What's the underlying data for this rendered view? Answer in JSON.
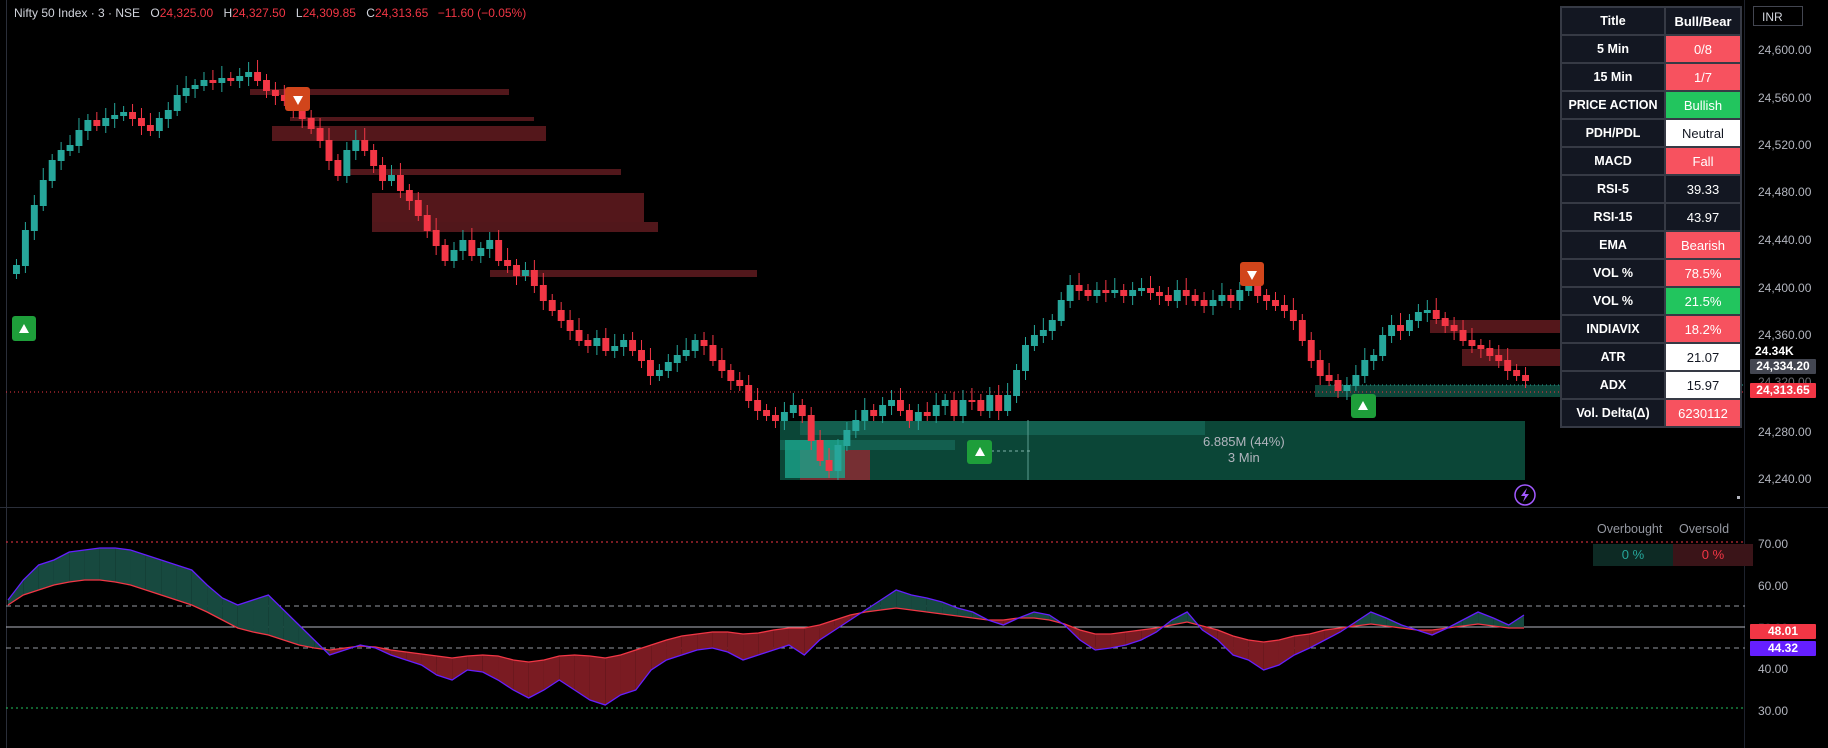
{
  "header": {
    "symbol": "Nifty 50 Index · 3 · NSE",
    "open_label": "O",
    "open": "24,325.00",
    "high_label": "H",
    "high": "24,327.50",
    "low_label": "L",
    "low": "24,309.85",
    "close_label": "C",
    "close": "24,313.65",
    "change": "−11.60 (−0.05%)"
  },
  "currency": "INR",
  "price_axis": {
    "ticks": [
      "24,600.00",
      "24,560.00",
      "24,520.00",
      "24,480.00",
      "24,440.00",
      "24,400.00",
      "24,360.00",
      "24,320.00",
      "24,280.00",
      "24,240.00"
    ],
    "marker_short": "24.34K",
    "marker_price": "24,334.20",
    "marker_last": "24,313.65"
  },
  "indicator_axis": {
    "ticks": [
      "70.00",
      "60.00",
      "50.00",
      "40.00",
      "30.00"
    ],
    "value_red": "48.01",
    "value_purple": "44.32"
  },
  "volume_label": {
    "value": "6.885M (44%)",
    "timeframe": "3 Min"
  },
  "overbought": {
    "label": "Overbought",
    "value": "0 %"
  },
  "oversold": {
    "label": "Oversold",
    "value": "0 %"
  },
  "table": {
    "header": {
      "left": "Title",
      "right": "Bull/Bear"
    },
    "rows": [
      {
        "label": "5 Min",
        "value": "0/8",
        "bg": "#f7525f",
        "fg": "#ffffff"
      },
      {
        "label": "15 Min",
        "value": "1/7",
        "bg": "#f7525f",
        "fg": "#ffffff"
      },
      {
        "label": "PRICE ACTION",
        "value": "Bullish",
        "bg": "#22c55e",
        "fg": "#ffffff"
      },
      {
        "label": "PDH/PDL",
        "value": "Neutral",
        "bg": "#ffffff",
        "fg": "#131722"
      },
      {
        "label": "MACD",
        "value": "Fall",
        "bg": "#f7525f",
        "fg": "#ffffff"
      },
      {
        "label": "RSI-5",
        "value": "39.33",
        "bg": "#131722",
        "fg": "#ffffff"
      },
      {
        "label": "RSI-15",
        "value": "43.97",
        "bg": "#131722",
        "fg": "#ffffff"
      },
      {
        "label": "EMA",
        "value": "Bearish",
        "bg": "#f7525f",
        "fg": "#ffffff"
      },
      {
        "label": "VOL %",
        "value": "78.5%",
        "bg": "#f7525f",
        "fg": "#ffffff"
      },
      {
        "label": "VOL %",
        "value": "21.5%",
        "bg": "#22c55e",
        "fg": "#ffffff"
      },
      {
        "label": "INDIAVIX",
        "value": "18.2%",
        "bg": "#f7525f",
        "fg": "#ffffff"
      },
      {
        "label": "ATR",
        "value": "21.07",
        "bg": "#ffffff",
        "fg": "#131722"
      },
      {
        "label": "ADX",
        "value": "15.97",
        "bg": "#ffffff",
        "fg": "#131722"
      },
      {
        "label": "Vol. Delta(Δ)",
        "value": "6230112",
        "bg": "#f7525f",
        "fg": "#ffffff"
      }
    ]
  },
  "colors": {
    "up": "#26a69a",
    "down": "#f23645",
    "background": "#000000"
  }
}
